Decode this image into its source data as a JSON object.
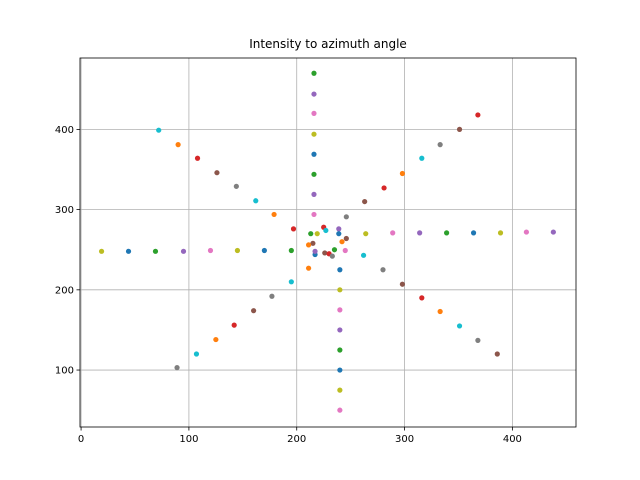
{
  "chart_data": {
    "type": "scatter",
    "title": "Intensity to azimuth angle",
    "xlabel": "",
    "ylabel": "",
    "xlim": [
      -1,
      459
    ],
    "ylim": [
      29,
      489
    ],
    "x_ticks": [
      0,
      100,
      200,
      300,
      400
    ],
    "y_ticks": [
      100,
      200,
      300,
      400
    ],
    "grid": true,
    "palette": [
      "#1f77b4",
      "#ff7f0e",
      "#2ca02c",
      "#d62728",
      "#9467bd",
      "#8c564b",
      "#e377c2",
      "#7f7f7f",
      "#bcbd22",
      "#17becf"
    ],
    "points": [
      {
        "x": 235,
        "y": 250,
        "color": "#2ca02c"
      },
      {
        "x": 226,
        "y": 246,
        "color": "#8c564b"
      },
      {
        "x": 215,
        "y": 258,
        "color": "#8c564b"
      },
      {
        "x": 211,
        "y": 256,
        "color": "#ff7f0e"
      },
      {
        "x": 225,
        "y": 278,
        "color": "#d62728"
      },
      {
        "x": 227,
        "y": 274,
        "color": "#17becf"
      },
      {
        "x": 219,
        "y": 270,
        "color": "#bcbd22"
      },
      {
        "x": 239,
        "y": 276,
        "color": "#9467bd"
      },
      {
        "x": 246,
        "y": 264,
        "color": "#8c564b"
      },
      {
        "x": 242,
        "y": 260,
        "color": "#ff7f0e"
      },
      {
        "x": 245,
        "y": 249,
        "color": "#e377c2"
      },
      {
        "x": 230,
        "y": 245,
        "color": "#d62728"
      },
      {
        "x": 233,
        "y": 242,
        "color": "#7f7f7f"
      },
      {
        "x": 217,
        "y": 244,
        "color": "#1f77b4"
      },
      {
        "x": 213,
        "y": 270,
        "color": "#2ca02c"
      },
      {
        "x": 239,
        "y": 270,
        "color": "#1f77b4"
      },
      {
        "x": 211,
        "y": 227,
        "color": "#ff7f0e"
      },
      {
        "x": 240,
        "y": 225,
        "color": "#1f77b4"
      },
      {
        "x": 217,
        "y": 248,
        "color": "#9467bd"
      },
      {
        "x": 216,
        "y": 470,
        "color": "#2ca02c"
      },
      {
        "x": 216,
        "y": 444,
        "color": "#9467bd"
      },
      {
        "x": 216,
        "y": 420,
        "color": "#e377c2"
      },
      {
        "x": 216,
        "y": 394,
        "color": "#bcbd22"
      },
      {
        "x": 216,
        "y": 369,
        "color": "#1f77b4"
      },
      {
        "x": 216,
        "y": 344,
        "color": "#2ca02c"
      },
      {
        "x": 216,
        "y": 319,
        "color": "#9467bd"
      },
      {
        "x": 216,
        "y": 294,
        "color": "#e377c2"
      },
      {
        "x": 240,
        "y": 200,
        "color": "#bcbd22"
      },
      {
        "x": 240,
        "y": 175,
        "color": "#e377c2"
      },
      {
        "x": 240,
        "y": 150,
        "color": "#9467bd"
      },
      {
        "x": 240,
        "y": 125,
        "color": "#2ca02c"
      },
      {
        "x": 240,
        "y": 100,
        "color": "#1f77b4"
      },
      {
        "x": 240,
        "y": 75,
        "color": "#bcbd22"
      },
      {
        "x": 240,
        "y": 50,
        "color": "#e377c2"
      },
      {
        "x": 19,
        "y": 248,
        "color": "#bcbd22"
      },
      {
        "x": 44,
        "y": 248,
        "color": "#1f77b4"
      },
      {
        "x": 69,
        "y": 248,
        "color": "#2ca02c"
      },
      {
        "x": 95,
        "y": 248,
        "color": "#9467bd"
      },
      {
        "x": 120,
        "y": 249,
        "color": "#e377c2"
      },
      {
        "x": 145,
        "y": 249,
        "color": "#bcbd22"
      },
      {
        "x": 170,
        "y": 249,
        "color": "#1f77b4"
      },
      {
        "x": 195,
        "y": 249,
        "color": "#2ca02c"
      },
      {
        "x": 264,
        "y": 270,
        "color": "#bcbd22"
      },
      {
        "x": 289,
        "y": 271,
        "color": "#e377c2"
      },
      {
        "x": 314,
        "y": 271,
        "color": "#9467bd"
      },
      {
        "x": 339,
        "y": 271,
        "color": "#2ca02c"
      },
      {
        "x": 364,
        "y": 271,
        "color": "#1f77b4"
      },
      {
        "x": 389,
        "y": 271,
        "color": "#bcbd22"
      },
      {
        "x": 413,
        "y": 272,
        "color": "#e377c2"
      },
      {
        "x": 438,
        "y": 272,
        "color": "#9467bd"
      },
      {
        "x": 72,
        "y": 399,
        "color": "#17becf"
      },
      {
        "x": 90,
        "y": 381,
        "color": "#ff7f0e"
      },
      {
        "x": 108,
        "y": 364,
        "color": "#d62728"
      },
      {
        "x": 126,
        "y": 346,
        "color": "#8c564b"
      },
      {
        "x": 144,
        "y": 329,
        "color": "#7f7f7f"
      },
      {
        "x": 162,
        "y": 311,
        "color": "#17becf"
      },
      {
        "x": 179,
        "y": 294,
        "color": "#ff7f0e"
      },
      {
        "x": 197,
        "y": 276,
        "color": "#d62728"
      },
      {
        "x": 368,
        "y": 418,
        "color": "#d62728"
      },
      {
        "x": 351,
        "y": 400,
        "color": "#8c564b"
      },
      {
        "x": 333,
        "y": 381,
        "color": "#7f7f7f"
      },
      {
        "x": 316,
        "y": 364,
        "color": "#17becf"
      },
      {
        "x": 298,
        "y": 345,
        "color": "#ff7f0e"
      },
      {
        "x": 281,
        "y": 327,
        "color": "#d62728"
      },
      {
        "x": 263,
        "y": 310,
        "color": "#8c564b"
      },
      {
        "x": 246,
        "y": 291,
        "color": "#7f7f7f"
      },
      {
        "x": 195,
        "y": 210,
        "color": "#17becf"
      },
      {
        "x": 177,
        "y": 192,
        "color": "#7f7f7f"
      },
      {
        "x": 160,
        "y": 174,
        "color": "#8c564b"
      },
      {
        "x": 142,
        "y": 156,
        "color": "#d62728"
      },
      {
        "x": 125,
        "y": 138,
        "color": "#ff7f0e"
      },
      {
        "x": 107,
        "y": 120,
        "color": "#17becf"
      },
      {
        "x": 89,
        "y": 103,
        "color": "#7f7f7f"
      },
      {
        "x": 262,
        "y": 243,
        "color": "#17becf"
      },
      {
        "x": 280,
        "y": 225,
        "color": "#7f7f7f"
      },
      {
        "x": 298,
        "y": 207,
        "color": "#8c564b"
      },
      {
        "x": 316,
        "y": 190,
        "color": "#d62728"
      },
      {
        "x": 333,
        "y": 173,
        "color": "#ff7f0e"
      },
      {
        "x": 351,
        "y": 155,
        "color": "#17becf"
      },
      {
        "x": 368,
        "y": 137,
        "color": "#7f7f7f"
      },
      {
        "x": 386,
        "y": 120,
        "color": "#8c564b"
      }
    ]
  }
}
